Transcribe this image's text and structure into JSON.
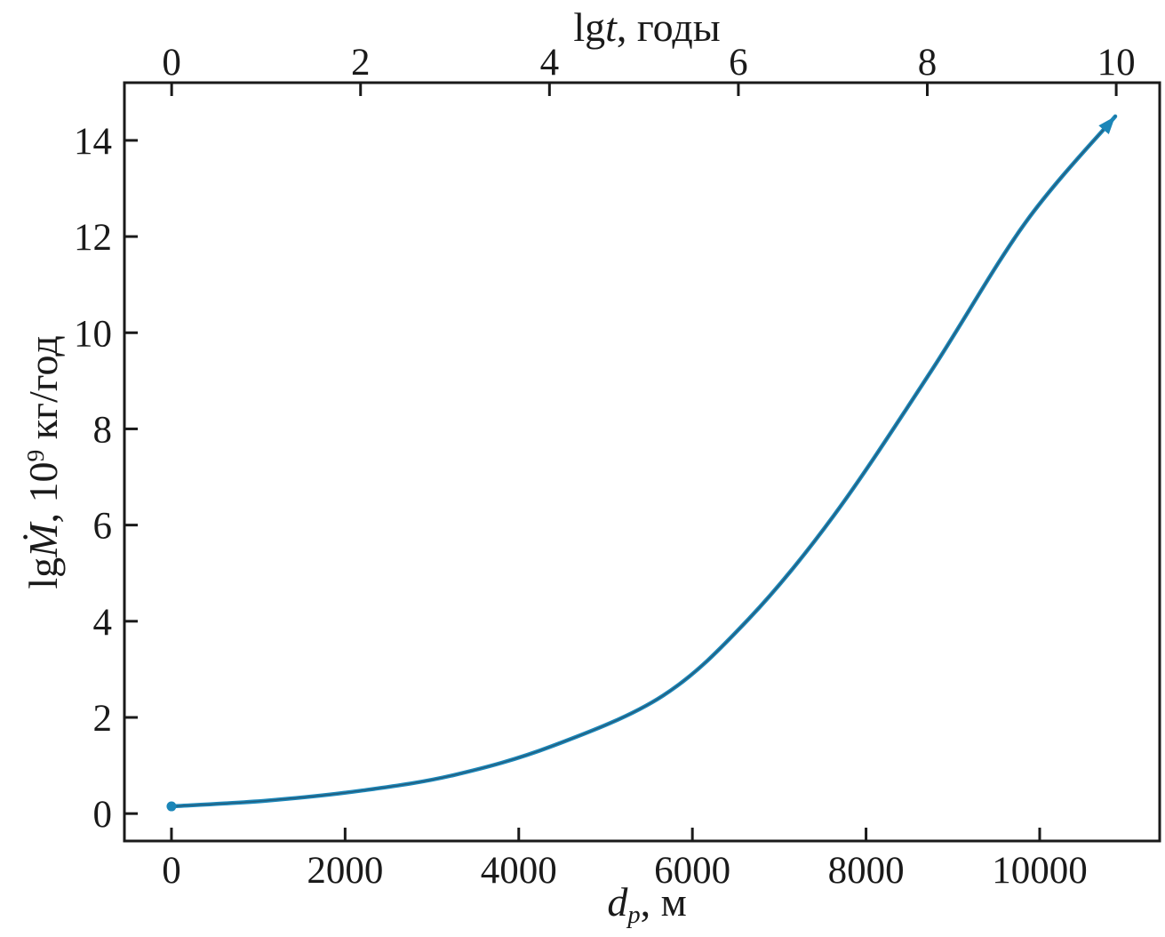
{
  "figure": {
    "background": "#ffffff",
    "text_color": "#1a1a1a"
  },
  "chart_data": {
    "type": "line",
    "title": "",
    "line_color": "#1b86b8",
    "line_core_color": "#27546e",
    "has_end_arrow": true,
    "has_start_dot": true,
    "grid": false,
    "legend": null,
    "axes": {
      "top": {
        "label_text": "lgt, годы",
        "label_parts": [
          {
            "t": "lg"
          },
          {
            "t": "t",
            "s": "it"
          },
          {
            "t": ", годы"
          }
        ],
        "ticks": [
          0,
          2,
          4,
          6,
          8,
          10
        ],
        "range": [
          -0.5,
          10.46
        ]
      },
      "bottom": {
        "label_text": "dp, м",
        "label_parts": [
          {
            "t": "d",
            "s": "it"
          },
          {
            "t": "p",
            "s": "sub"
          },
          {
            "t": ", м"
          }
        ],
        "ticks": [
          0,
          2000,
          4000,
          6000,
          8000,
          10000
        ],
        "range": [
          -542,
          11382
        ]
      },
      "left": {
        "label_text": "lgṀ, 10⁹ кг/год",
        "label_parts": [
          {
            "t": "lg"
          },
          {
            "t": "Ṁ",
            "s": "it"
          },
          {
            "t": ", 10"
          },
          {
            "t": "9",
            "s": "sup"
          },
          {
            "t": " кг/год"
          }
        ],
        "ticks": [
          0,
          2,
          4,
          6,
          8,
          10,
          12,
          14
        ],
        "range": [
          -0.57,
          15.2
        ]
      }
    },
    "series": [
      {
        "name": "lgM-dot vs d_p",
        "x_axis": "bottom",
        "y_axis": "left",
        "x": [
          0,
          1100,
          2200,
          3250,
          4380,
          5660,
          6650,
          7630,
          8750,
          9840,
          10870
        ],
        "y": [
          0.15,
          0.27,
          0.48,
          0.8,
          1.4,
          2.45,
          4.05,
          6.2,
          9.2,
          12.3,
          14.5
        ]
      }
    ]
  }
}
